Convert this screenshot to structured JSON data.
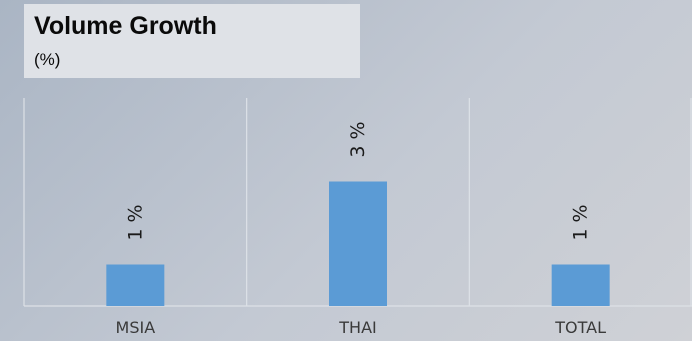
{
  "chart_data": {
    "type": "bar",
    "title": "Volume Growth",
    "subtitle": "(%)",
    "categories": [
      "MSIA",
      "THAI",
      "TOTAL"
    ],
    "values": [
      1,
      3,
      1
    ],
    "data_labels": [
      "1 %",
      "3 %",
      "1 %"
    ],
    "xlabel": "",
    "ylabel": "",
    "ylim": [
      0,
      5
    ],
    "grid": "vertical separators",
    "legend": "none",
    "bar_color": "#5b9bd5"
  }
}
